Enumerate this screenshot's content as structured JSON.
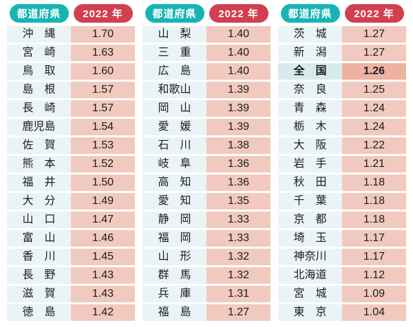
{
  "header": {
    "prefecture_label": "都道府県",
    "year_label": "2022 年"
  },
  "colors": {
    "header_teal": "#17b4b3",
    "header_red": "#d23f51",
    "name_cell_bg": "#eaf3f5",
    "value_cell_bg": "#f1c9be",
    "highlight_name_bg": "#d8ebec",
    "highlight_value_bg": "#eeb2a3",
    "text": "#1c1c1c"
  },
  "chart_data": {
    "type": "table",
    "columns": [
      "都道府県",
      "2022 年"
    ],
    "highlight_row": "全国",
    "groups": [
      {
        "rows": [
          {
            "name": "沖縄",
            "value": "1.70"
          },
          {
            "name": "宮崎",
            "value": "1.63"
          },
          {
            "name": "鳥取",
            "value": "1.60"
          },
          {
            "name": "島根",
            "value": "1.57"
          },
          {
            "name": "長崎",
            "value": "1.57"
          },
          {
            "name": "鹿児島",
            "value": "1.54"
          },
          {
            "name": "佐賀",
            "value": "1.53"
          },
          {
            "name": "熊本",
            "value": "1.52"
          },
          {
            "name": "福井",
            "value": "1.50"
          },
          {
            "name": "大分",
            "value": "1.49"
          },
          {
            "name": "山口",
            "value": "1.47"
          },
          {
            "name": "富山",
            "value": "1.46"
          },
          {
            "name": "香川",
            "value": "1.45"
          },
          {
            "name": "長野",
            "value": "1.43"
          },
          {
            "name": "滋賀",
            "value": "1.43"
          },
          {
            "name": "徳島",
            "value": "1.42"
          }
        ]
      },
      {
        "rows": [
          {
            "name": "山梨",
            "value": "1.40"
          },
          {
            "name": "三重",
            "value": "1.40"
          },
          {
            "name": "広島",
            "value": "1.40"
          },
          {
            "name": "和歌山",
            "value": "1.39"
          },
          {
            "name": "岡山",
            "value": "1.39"
          },
          {
            "name": "愛媛",
            "value": "1.39"
          },
          {
            "name": "石川",
            "value": "1.38"
          },
          {
            "name": "岐阜",
            "value": "1.36"
          },
          {
            "name": "高知",
            "value": "1.36"
          },
          {
            "name": "愛知",
            "value": "1.35"
          },
          {
            "name": "静岡",
            "value": "1.33"
          },
          {
            "name": "福岡",
            "value": "1.33"
          },
          {
            "name": "山形",
            "value": "1.32"
          },
          {
            "name": "群馬",
            "value": "1.32"
          },
          {
            "name": "兵庫",
            "value": "1.31"
          },
          {
            "name": "福島",
            "value": "1.27"
          }
        ]
      },
      {
        "rows": [
          {
            "name": "茨城",
            "value": "1.27"
          },
          {
            "name": "新潟",
            "value": "1.27"
          },
          {
            "name": "全国",
            "value": "1.26",
            "highlight": true
          },
          {
            "name": "奈良",
            "value": "1.25"
          },
          {
            "name": "青森",
            "value": "1.24"
          },
          {
            "name": "栃木",
            "value": "1.24"
          },
          {
            "name": "大阪",
            "value": "1.22"
          },
          {
            "name": "岩手",
            "value": "1.21"
          },
          {
            "name": "秋田",
            "value": "1.18"
          },
          {
            "name": "千葉",
            "value": "1.18"
          },
          {
            "name": "京都",
            "value": "1.18"
          },
          {
            "name": "埼玉",
            "value": "1.17"
          },
          {
            "name": "神奈川",
            "value": "1.17"
          },
          {
            "name": "北海道",
            "value": "1.12"
          },
          {
            "name": "宮城",
            "value": "1.09"
          },
          {
            "name": "東京",
            "value": "1.04"
          }
        ]
      }
    ]
  }
}
